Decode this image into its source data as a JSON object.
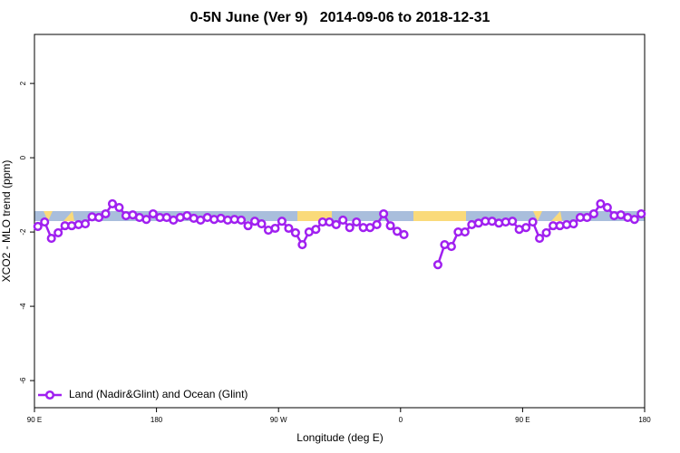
{
  "chart_data": {
    "type": "line",
    "title": "0-5N June (Ver 9)   2014-09-06 to 2018-12-31",
    "xlabel": "Longitude (deg E)",
    "ylabel": "XCO2 - MLO trend (ppm)",
    "xlim": [
      90,
      540
    ],
    "xticks": [
      {
        "value": 90,
        "label": "90 E"
      },
      180,
      {
        "value": 270,
        "label": "90 W"
      },
      {
        "value": 360,
        "label": "0"
      },
      {
        "value": 450,
        "label": "90 E"
      },
      {
        "value": 540,
        "label": "180"
      }
    ],
    "ylim": [
      -6.73,
      3.32
    ],
    "yticks": [
      -6,
      -4,
      -2,
      0,
      2
    ],
    "legend": "bottom-left",
    "x": [
      92.5,
      97.5,
      102.5,
      107.5,
      112.5,
      117.5,
      122.5,
      127.5,
      132.5,
      137.5,
      142.5,
      147.5,
      152.5,
      157.5,
      162.5,
      167.5,
      172.5,
      177.5,
      182.5,
      187.5,
      192.5,
      197.5,
      202.5,
      207.5,
      212.5,
      217.5,
      222.5,
      227.5,
      232.5,
      237.5,
      242.5,
      247.5,
      252.5,
      257.5,
      262.5,
      267.5,
      272.5,
      277.5,
      282.5,
      287.5,
      292.5,
      297.5,
      302.5,
      307.5,
      312.5,
      317.5,
      322.5,
      327.5,
      332.5,
      337.5,
      342.5,
      347.5,
      352.5,
      357.5,
      362.5,
      367.5,
      372.5,
      377.5,
      382.5,
      387.5,
      392.5,
      397.5,
      402.5,
      407.5,
      412.5,
      417.5,
      422.5,
      427.5,
      432.5,
      437.5,
      442.5,
      447.5,
      452.5,
      457.5,
      462.5,
      467.5,
      472.5,
      477.5,
      482.5,
      487.5,
      492.5,
      497.5,
      502.5,
      507.5,
      512.5,
      517.5,
      522.5,
      527.5,
      532.5,
      537.5
    ],
    "series": [
      {
        "name": "Land (Nadir&Glint) and Ocean (Glint)",
        "color": "#a020f0",
        "values": [
          -1.85,
          -1.73,
          -2.17,
          -2.02,
          -1.83,
          -1.83,
          -1.8,
          -1.78,
          -1.59,
          -1.61,
          -1.51,
          -1.24,
          -1.34,
          -1.56,
          -1.54,
          -1.61,
          -1.66,
          -1.51,
          -1.61,
          -1.61,
          -1.68,
          -1.61,
          -1.56,
          -1.63,
          -1.68,
          -1.61,
          -1.66,
          -1.63,
          -1.68,
          -1.66,
          -1.68,
          -1.83,
          -1.71,
          -1.78,
          -1.95,
          -1.9,
          -1.71,
          -1.9,
          -2.02,
          -2.34,
          -2.0,
          -1.93,
          -1.73,
          -1.73,
          -1.8,
          -1.68,
          -1.88,
          -1.73,
          -1.88,
          -1.88,
          -1.8,
          -1.51,
          -1.83,
          -1.98,
          -2.07,
          null,
          null,
          null,
          null,
          -2.88,
          -2.34,
          -2.39,
          -2.0,
          -2.0,
          -1.8,
          -1.76,
          -1.71,
          -1.71,
          -1.76,
          -1.73,
          -1.71,
          -1.93,
          -1.88,
          -1.73,
          -2.17,
          -2.02,
          -1.83,
          -1.83,
          -1.8,
          -1.78,
          -1.61,
          -1.61,
          -1.51,
          -1.24,
          -1.34,
          -1.56,
          -1.54,
          -1.61,
          -1.66,
          -1.51
        ]
      }
    ]
  }
}
